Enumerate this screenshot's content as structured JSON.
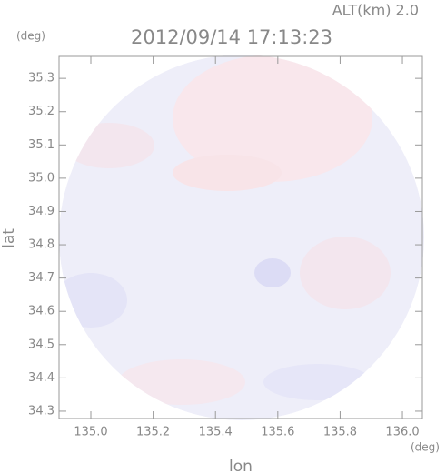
{
  "chart_data": {
    "type": "radar-map",
    "title": "2012/09/14 17:13:23",
    "subtitle": "ALT(km) 2.0",
    "x_label": "lon",
    "y_label": "lat",
    "x_unit": "(deg)",
    "y_unit": "(deg)",
    "xlim": [
      134.898,
      136.064
    ],
    "ylim": [
      34.278,
      35.366
    ],
    "xticks": [
      {
        "value": 135.0,
        "label": "135.0"
      },
      135.2,
      135.4,
      135.6,
      135.8,
      {
        "value": 136.0,
        "label": "136.0"
      }
    ],
    "yticks": [
      34.3,
      34.4,
      34.5,
      34.6,
      34.7,
      34.8,
      34.9,
      {
        "value": 35.0,
        "label": "35.0"
      },
      35.1,
      35.2,
      35.3
    ]
  }
}
